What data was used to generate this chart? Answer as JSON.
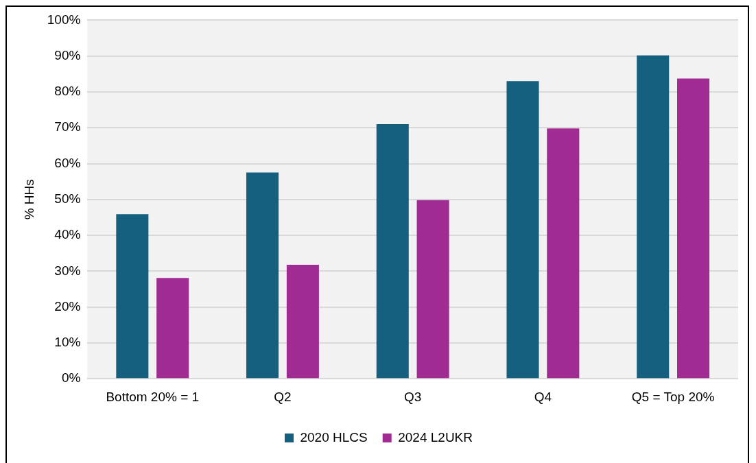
{
  "chart_data": {
    "type": "bar",
    "ylabel": "% HHs",
    "categories": [
      "Bottom 20% = 1",
      "Q2",
      "Q3",
      "Q4",
      "Q5 = Top 20%"
    ],
    "series": [
      {
        "name": "2020 HLCS",
        "color": "#16607f",
        "values": [
          45.9,
          57.5,
          71.0,
          83.0,
          90.2
        ]
      },
      {
        "name": "2024 L2UKR",
        "color": "#a02b93",
        "values": [
          28.1,
          31.8,
          49.8,
          69.8,
          83.7
        ]
      }
    ],
    "ylim": [
      0,
      100
    ],
    "yticks": [
      {
        "value": 0,
        "label": "0%"
      },
      {
        "value": 10,
        "label": "10%"
      },
      {
        "value": 20,
        "label": "20%"
      },
      {
        "value": 30,
        "label": "30%"
      },
      {
        "value": 40,
        "label": "40%"
      },
      {
        "value": 50,
        "label": "50%"
      },
      {
        "value": 60,
        "label": "60%"
      },
      {
        "value": 70,
        "label": "70%"
      },
      {
        "value": 80,
        "label": "80%"
      },
      {
        "value": 90,
        "label": "90%"
      },
      {
        "value": 100,
        "label": "100%"
      }
    ],
    "grid": "y",
    "legend": "bottom"
  }
}
